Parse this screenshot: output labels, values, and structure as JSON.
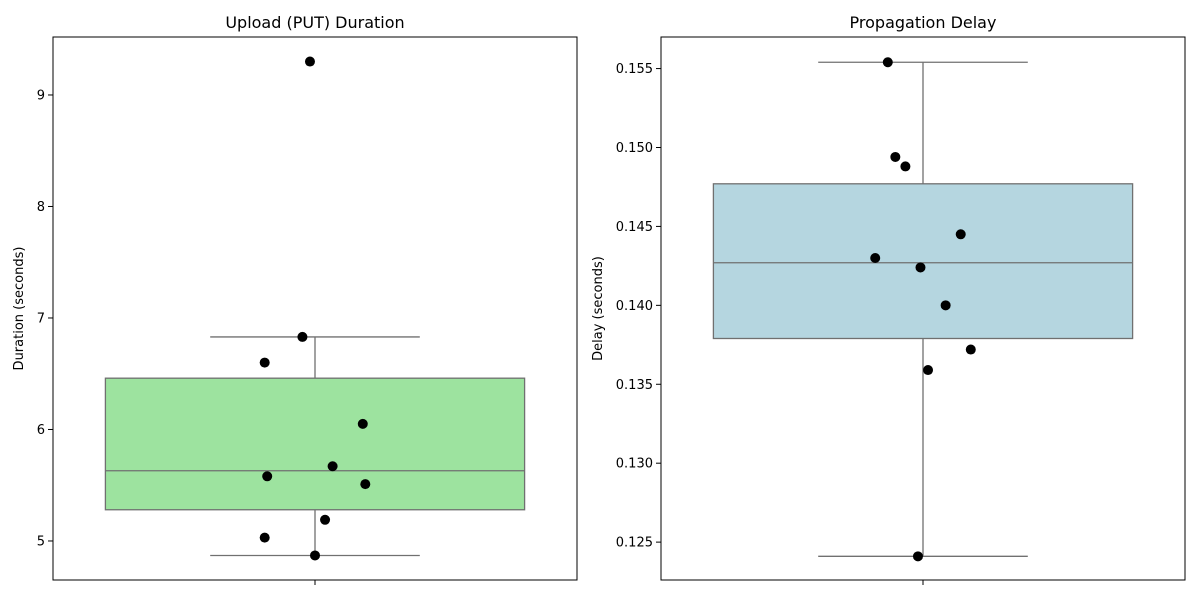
{
  "chart_data": [
    {
      "type": "box",
      "title": "Upload (PUT) Duration",
      "xlabel": "",
      "ylabel": "Duration (seconds)",
      "ylim": [
        4.65,
        9.52
      ],
      "yticks": [
        5,
        6,
        7,
        8,
        9
      ],
      "ytick_labels": [
        "5",
        "6",
        "7",
        "8",
        "9"
      ],
      "grid": false,
      "box_color": "#9de39f",
      "box": {
        "whisker_low": 4.87,
        "q1": 5.28,
        "median": 5.63,
        "q3": 6.46,
        "whisker_high": 6.83
      },
      "points": [
        {
          "jitter": -0.02,
          "y": 9.3
        },
        {
          "jitter": -0.05,
          "y": 6.83
        },
        {
          "jitter": -0.2,
          "y": 6.6
        },
        {
          "jitter": 0.19,
          "y": 6.05
        },
        {
          "jitter": 0.07,
          "y": 5.67
        },
        {
          "jitter": -0.19,
          "y": 5.58
        },
        {
          "jitter": 0.2,
          "y": 5.51
        },
        {
          "jitter": 0.04,
          "y": 5.19
        },
        {
          "jitter": -0.2,
          "y": 5.03
        },
        {
          "jitter": 0.0,
          "y": 4.87
        }
      ],
      "point_color": "#000000",
      "line_color": "#707070"
    },
    {
      "type": "box",
      "title": "Propagation Delay",
      "xlabel": "",
      "ylabel": "Delay (seconds)",
      "ylim": [
        0.1226,
        0.157
      ],
      "yticks": [
        0.125,
        0.13,
        0.135,
        0.14,
        0.145,
        0.15,
        0.155
      ],
      "ytick_labels": [
        "0.125",
        "0.130",
        "0.135",
        "0.140",
        "0.145",
        "0.150",
        "0.155"
      ],
      "grid": false,
      "box_color": "#b5d6e0",
      "box": {
        "whisker_low": 0.1241,
        "q1": 0.1379,
        "median": 0.1427,
        "q3": 0.1477,
        "whisker_high": 0.1554
      },
      "points": [
        {
          "jitter": -0.14,
          "y": 0.1554
        },
        {
          "jitter": -0.11,
          "y": 0.1494
        },
        {
          "jitter": -0.07,
          "y": 0.1488
        },
        {
          "jitter": 0.15,
          "y": 0.1445
        },
        {
          "jitter": -0.19,
          "y": 0.143
        },
        {
          "jitter": -0.01,
          "y": 0.1424
        },
        {
          "jitter": 0.09,
          "y": 0.14
        },
        {
          "jitter": 0.19,
          "y": 0.1372
        },
        {
          "jitter": 0.02,
          "y": 0.1359
        },
        {
          "jitter": -0.02,
          "y": 0.1241
        }
      ],
      "point_color": "#000000",
      "line_color": "#707070"
    }
  ]
}
